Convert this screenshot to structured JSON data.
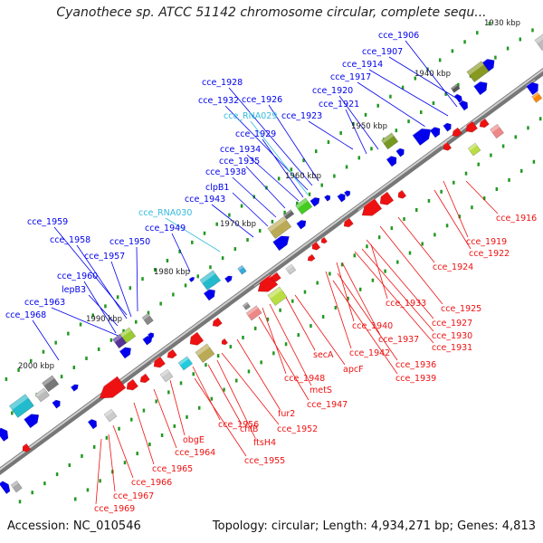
{
  "title": "Cyanothece sp. ATCC 51142 chromosome circular, complete sequ...",
  "footer": {
    "accession": "Accession: NC_010546",
    "summary": "Topology: circular; Length: 4,934,271 bp; Genes: 4,813"
  },
  "colors": {
    "forward_gene": "#0000ee",
    "reverse_gene": "#ee1111",
    "rna_label": "#33bbdd",
    "backbone": "#888888",
    "tick": "#229922"
  },
  "kbp_ticks": [
    {
      "label": "1930 kbp"
    },
    {
      "label": "1940 kbp"
    },
    {
      "label": "1950 kbp"
    },
    {
      "label": "1960 kbp"
    },
    {
      "label": "1970 kbp"
    },
    {
      "label": "1980 kbp"
    },
    {
      "label": "1990 kbp"
    },
    {
      "label": "2000 kbp"
    }
  ],
  "upper_labels": [
    {
      "text": "cce_1906",
      "kind": "gene"
    },
    {
      "text": "cce_1907",
      "kind": "gene"
    },
    {
      "text": "cce_1914",
      "kind": "gene"
    },
    {
      "text": "cce_1917",
      "kind": "gene"
    },
    {
      "text": "cce_1920",
      "kind": "gene"
    },
    {
      "text": "cce_1921",
      "kind": "gene"
    },
    {
      "text": "cce_1923",
      "kind": "gene"
    },
    {
      "text": "cce_1926",
      "kind": "gene"
    },
    {
      "text": "cce_1928",
      "kind": "gene"
    },
    {
      "text": "cce_1932",
      "kind": "gene"
    },
    {
      "text": "cce_RNA029",
      "kind": "rna"
    },
    {
      "text": "cce_1929",
      "kind": "gene"
    },
    {
      "text": "cce_1934",
      "kind": "gene"
    },
    {
      "text": "cce_1935",
      "kind": "gene"
    },
    {
      "text": "cce_1938",
      "kind": "gene"
    },
    {
      "text": "clpB1",
      "kind": "gene"
    },
    {
      "text": "cce_1943",
      "kind": "gene"
    },
    {
      "text": "cce_RNA030",
      "kind": "rna"
    },
    {
      "text": "cce_1949",
      "kind": "gene"
    },
    {
      "text": "cce_1950",
      "kind": "gene"
    },
    {
      "text": "cce_1959",
      "kind": "gene"
    },
    {
      "text": "cce_1958",
      "kind": "gene"
    },
    {
      "text": "cce_1957",
      "kind": "gene"
    },
    {
      "text": "cce_1960",
      "kind": "gene"
    },
    {
      "text": "lepB3",
      "kind": "gene"
    },
    {
      "text": "cce_1963",
      "kind": "gene"
    },
    {
      "text": "cce_1968",
      "kind": "gene"
    }
  ],
  "lower_labels": [
    {
      "text": "cce_1916"
    },
    {
      "text": "cce_1919"
    },
    {
      "text": "cce_1922"
    },
    {
      "text": "cce_1924"
    },
    {
      "text": "cce_1925"
    },
    {
      "text": "cce_1933"
    },
    {
      "text": "cce_1927"
    },
    {
      "text": "cce_1930"
    },
    {
      "text": "cce_1931"
    },
    {
      "text": "cce_1940"
    },
    {
      "text": "cce_1937"
    },
    {
      "text": "cce_1942"
    },
    {
      "text": "cce_1936"
    },
    {
      "text": "cce_1939"
    },
    {
      "text": "secA"
    },
    {
      "text": "apcF"
    },
    {
      "text": "cce_1948"
    },
    {
      "text": "metS"
    },
    {
      "text": "cce_1947"
    },
    {
      "text": "fur2"
    },
    {
      "text": "cce_1952"
    },
    {
      "text": "ftsH4"
    },
    {
      "text": "chlB"
    },
    {
      "text": "cce_1956"
    },
    {
      "text": "cce_1955"
    },
    {
      "text": "obgE"
    },
    {
      "text": "cce_1964"
    },
    {
      "text": "cce_1965"
    },
    {
      "text": "cce_1966"
    },
    {
      "text": "cce_1967"
    },
    {
      "text": "cce_1969"
    }
  ]
}
